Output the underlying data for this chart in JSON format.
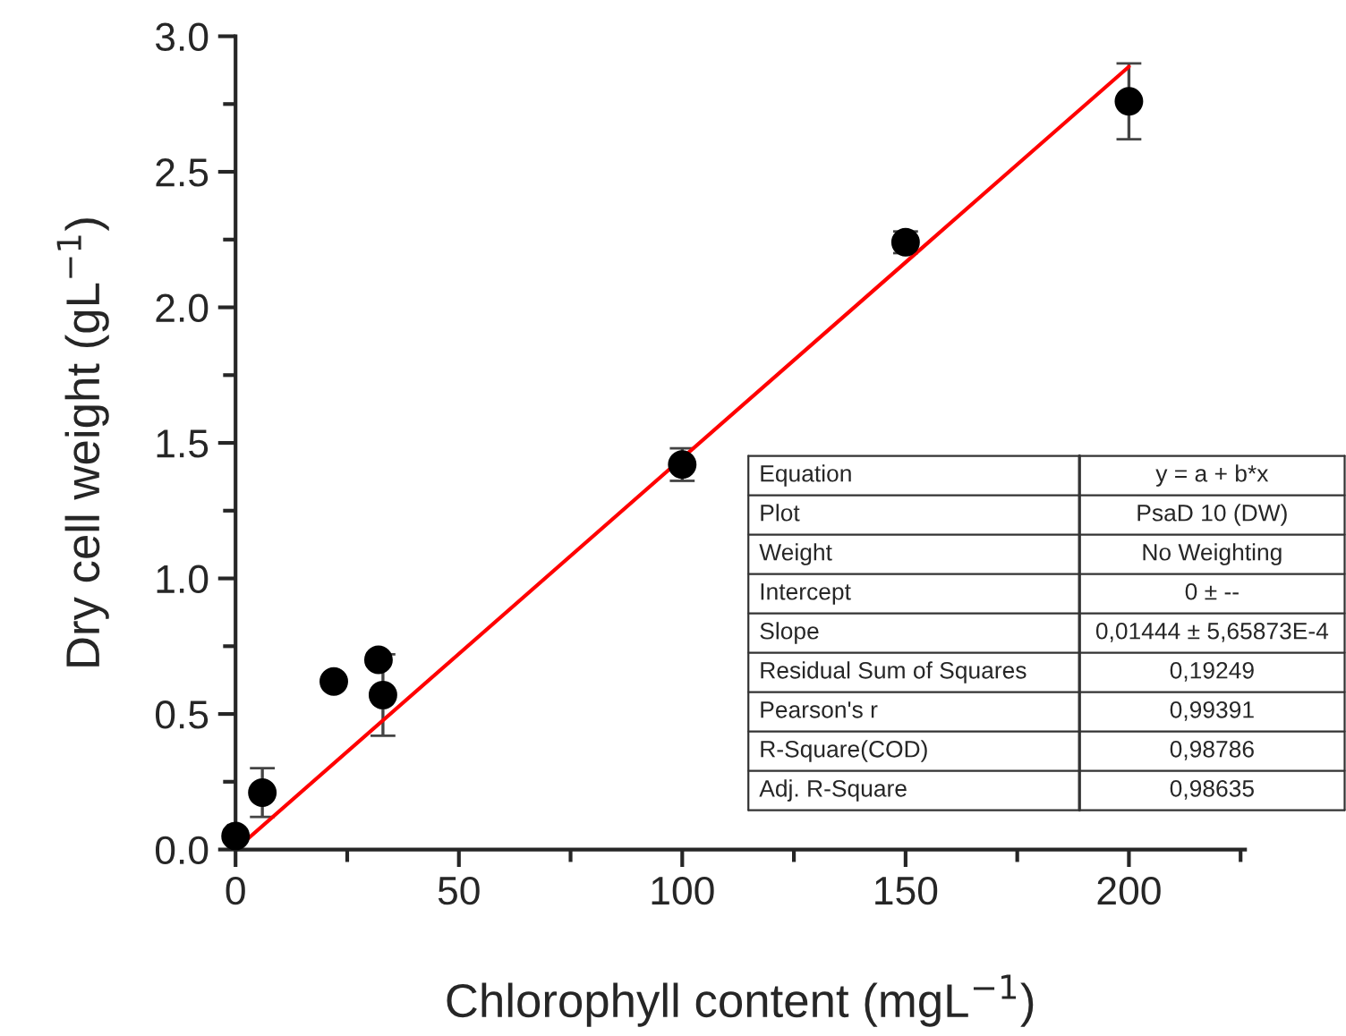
{
  "chart_data": {
    "type": "scatter",
    "xlabel": "Chlorophyll content (mgL$^{−1}$)",
    "ylabel": "Dry cell weight (gL$^{−1}$)",
    "xlim": [
      0,
      226
    ],
    "xticks": [
      0,
      50,
      100,
      150,
      200
    ],
    "ylim": [
      0,
      3.0
    ],
    "yticks": [
      {
        "value": 0,
        "label": "0.0"
      },
      {
        "value": 0.5,
        "label": "0.5"
      },
      {
        "value": 1,
        "label": "1.0"
      },
      {
        "value": 1.5,
        "label": "1.5"
      },
      {
        "value": 2,
        "label": "2.0"
      },
      {
        "value": 2.5,
        "label": "2.5"
      },
      {
        "value": 3,
        "label": "3.0"
      }
    ],
    "grid": false,
    "legend": false,
    "series": [
      {
        "marker": "circle",
        "color": "#000000",
        "x": [
          0,
          6,
          22,
          32,
          33,
          100,
          150,
          200
        ],
        "values": [
          0.05,
          0.21,
          0.62,
          0.7,
          0.57,
          1.42,
          2.24,
          2.76
        ],
        "errors": [
          null,
          0.09,
          null,
          0.02,
          0.15,
          0.06,
          0.04,
          0.14
        ]
      },
      {
        "type": "line",
        "marker": "none",
        "color": "#ff0000",
        "x": [
          0,
          200
        ],
        "values": [
          0,
          2.888
        ]
      }
    ],
    "annotations": [
      "Equation",
      "y = a + b*x",
      "Plot",
      "PsaD 10 (DW)",
      "Weight",
      "No Weighting",
      "Intercept",
      "0 ± --",
      "Slope",
      "0,01444 ± 5,65873E-4",
      "Residual Sum of Squares",
      "0,19249",
      "Pearson's r",
      "0,99391",
      "R-Square(COD)",
      "0,98786",
      "Adj. R-Square",
      "0,98635"
    ]
  }
}
